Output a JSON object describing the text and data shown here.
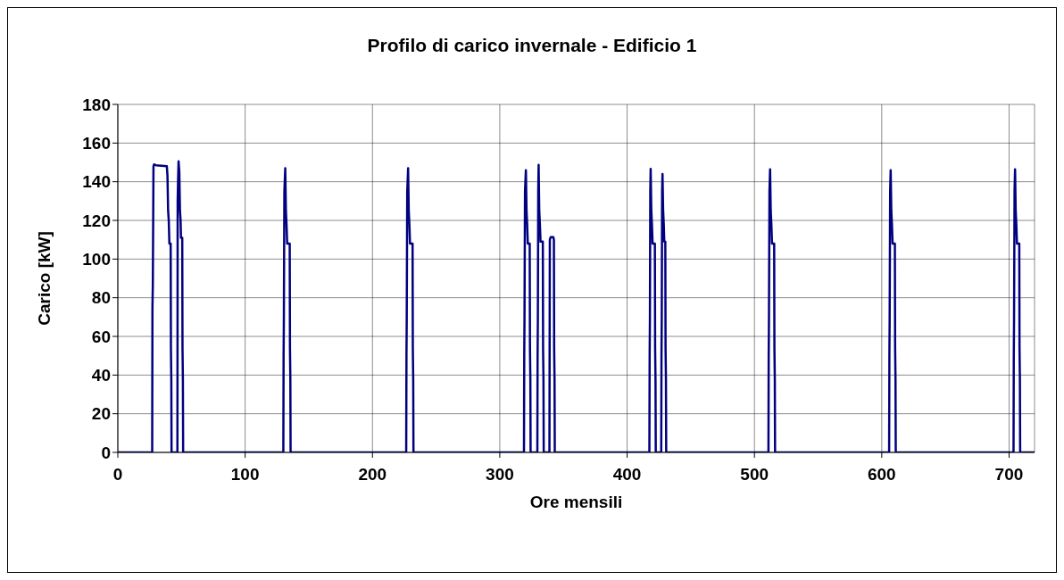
{
  "chart_data": {
    "type": "line",
    "title": "Profilo di carico invernale - Edificio 1",
    "xlabel": "Ore mensili",
    "ylabel": "Carico [kW]",
    "xlim": [
      0,
      720
    ],
    "xticks": [
      0,
      100,
      200,
      300,
      400,
      500,
      600,
      700
    ],
    "ylim": [
      0,
      180
    ],
    "yticks": [
      0,
      20,
      40,
      60,
      80,
      100,
      120,
      140,
      160,
      180
    ],
    "grid": true,
    "marker": "none",
    "line_style": "solid",
    "series": [
      {
        "color": "#000080",
        "x": [
          0,
          27,
          27.2,
          27.5,
          28,
          28.5,
          30,
          38.5,
          39,
          39.5,
          40,
          40.5,
          41.5,
          41.7,
          42,
          42.2,
          46.8,
          47,
          47.3,
          47.7,
          48.3,
          48.8,
          49.3,
          49.6,
          50.6,
          50.8,
          51.1,
          51.3,
          130,
          130.2,
          130.4,
          130.8,
          131.5,
          132,
          132.5,
          133,
          135,
          135.2,
          135.5,
          135.7,
          226.5,
          226.7,
          226.9,
          227.3,
          228,
          228.5,
          229,
          229.5,
          231.5,
          231.7,
          232,
          232.2,
          319,
          319.2,
          319.4,
          319.8,
          320.5,
          321,
          321.5,
          322,
          323.5,
          323.7,
          324,
          324.2,
          329.5,
          329.7,
          329.9,
          330.2,
          330.5,
          331,
          331.5,
          332,
          333.8,
          334,
          334.3,
          334.5,
          339,
          339.3,
          340,
          342,
          342.5,
          342.7,
          343,
          343.2,
          417.5,
          417.7,
          417.9,
          418.2,
          418.5,
          419,
          419.5,
          420,
          421.8,
          422,
          422.3,
          422.5,
          426.8,
          427,
          427.2,
          427.5,
          427.8,
          428.3,
          428.8,
          429.2,
          430,
          430.2,
          430.5,
          430.7,
          511,
          511.2,
          511.4,
          511.8,
          512.3,
          512.8,
          513.3,
          513.8,
          515.5,
          515.7,
          516,
          516.2,
          605.8,
          606,
          606.2,
          606.6,
          607,
          607.5,
          608,
          608.5,
          610.3,
          610.5,
          610.8,
          611,
          703.5,
          703.7,
          703.9,
          704.3,
          704.7,
          705.2,
          705.7,
          706.2,
          708,
          708.2,
          708.5,
          708.7,
          720
        ],
        "values": [
          0,
          0,
          75,
          87,
          148,
          149,
          148.5,
          148,
          143,
          125,
          120,
          108,
          108,
          54,
          38,
          0,
          0,
          130,
          140,
          150.6,
          145,
          125,
          120,
          111,
          111,
          54,
          38,
          0,
          0,
          50,
          68,
          135,
          147,
          125,
          118,
          108,
          108,
          54,
          38,
          0,
          0,
          50,
          68,
          135,
          147,
          125,
          118,
          108,
          108,
          54,
          38,
          0,
          0,
          50,
          68,
          135,
          146,
          125,
          118,
          108,
          108,
          54,
          38,
          0,
          0,
          50,
          68,
          135,
          148.7,
          125,
          118,
          109,
          109,
          54,
          38,
          0,
          0,
          110,
          111.4,
          111.4,
          110,
          54,
          38,
          0,
          0,
          50,
          68,
          135,
          146.6,
          125,
          118,
          108,
          108,
          54,
          38,
          0,
          0,
          50,
          68,
          135,
          144,
          125,
          118,
          109,
          109,
          54,
          38,
          0,
          0,
          50,
          68,
          135,
          146.4,
          125,
          118,
          108,
          108,
          54,
          38,
          0,
          0,
          50,
          68,
          135,
          146,
          125,
          118,
          108,
          108,
          54,
          38,
          0,
          0,
          50,
          68,
          135,
          146.4,
          125,
          118,
          108,
          108,
          54,
          38,
          0,
          0
        ]
      }
    ]
  }
}
